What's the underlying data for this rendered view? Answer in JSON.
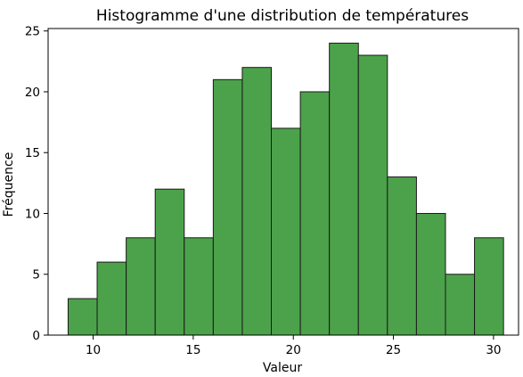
{
  "chart_data": {
    "type": "bar",
    "title": "Histogramme d'une distribution de températures",
    "xlabel": "Valeur",
    "ylabel": "Fréquence",
    "bin_edges": [
      8.75,
      10.2,
      11.65,
      13.1,
      14.55,
      16.0,
      17.45,
      18.9,
      20.35,
      21.8,
      23.25,
      24.7,
      26.15,
      27.6,
      29.05,
      30.5
    ],
    "values": [
      3,
      6,
      8,
      12,
      8,
      21,
      22,
      17,
      20,
      24,
      23,
      13,
      10,
      5,
      8
    ],
    "xlim": [
      7.75,
      31.25
    ],
    "ylim": [
      0,
      25.2
    ],
    "xticks": [
      10,
      15,
      20,
      25,
      30
    ],
    "yticks": [
      0,
      5,
      10,
      15,
      20,
      25
    ],
    "bar_color": "#4ca24a",
    "edge_color": "#1a1a1a",
    "grid": false
  }
}
